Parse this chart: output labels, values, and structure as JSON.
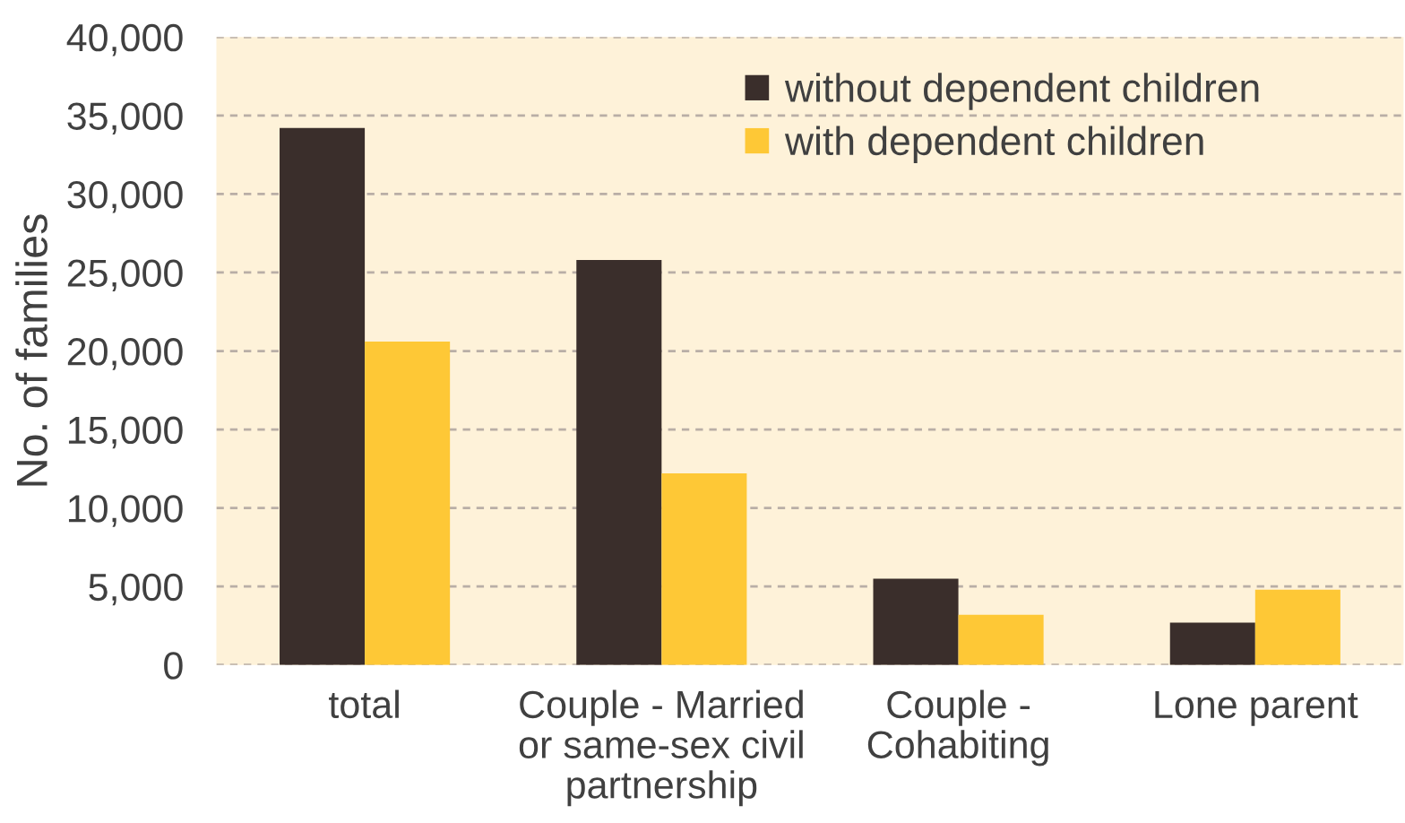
{
  "chart_data": {
    "type": "bar",
    "ylabel": "No. of families",
    "categories": [
      "total",
      "Couple - Married\nor same-sex civil\npartnership",
      "Couple -\nCohabiting",
      "Lone parent"
    ],
    "series": [
      {
        "name": "without dependent children",
        "color": "#3a2e2b",
        "values": [
          34200,
          25800,
          5500,
          2700
        ]
      },
      {
        "name": "with dependent children",
        "color": "#fec836",
        "values": [
          20600,
          12200,
          3200,
          4800
        ]
      }
    ],
    "ylim": [
      0,
      40000
    ],
    "yticks": [
      {
        "value": 0,
        "label": "0"
      },
      {
        "value": 5000,
        "label": "5,000"
      },
      {
        "value": 10000,
        "label": "10,000"
      },
      {
        "value": 15000,
        "label": "15,000"
      },
      {
        "value": 20000,
        "label": "20,000"
      },
      {
        "value": 25000,
        "label": "25,000"
      },
      {
        "value": 30000,
        "label": "30,000"
      },
      {
        "value": 35000,
        "label": "35,000"
      },
      {
        "value": 40000,
        "label": "40,000"
      }
    ],
    "grid": "y",
    "legend": "top right"
  }
}
